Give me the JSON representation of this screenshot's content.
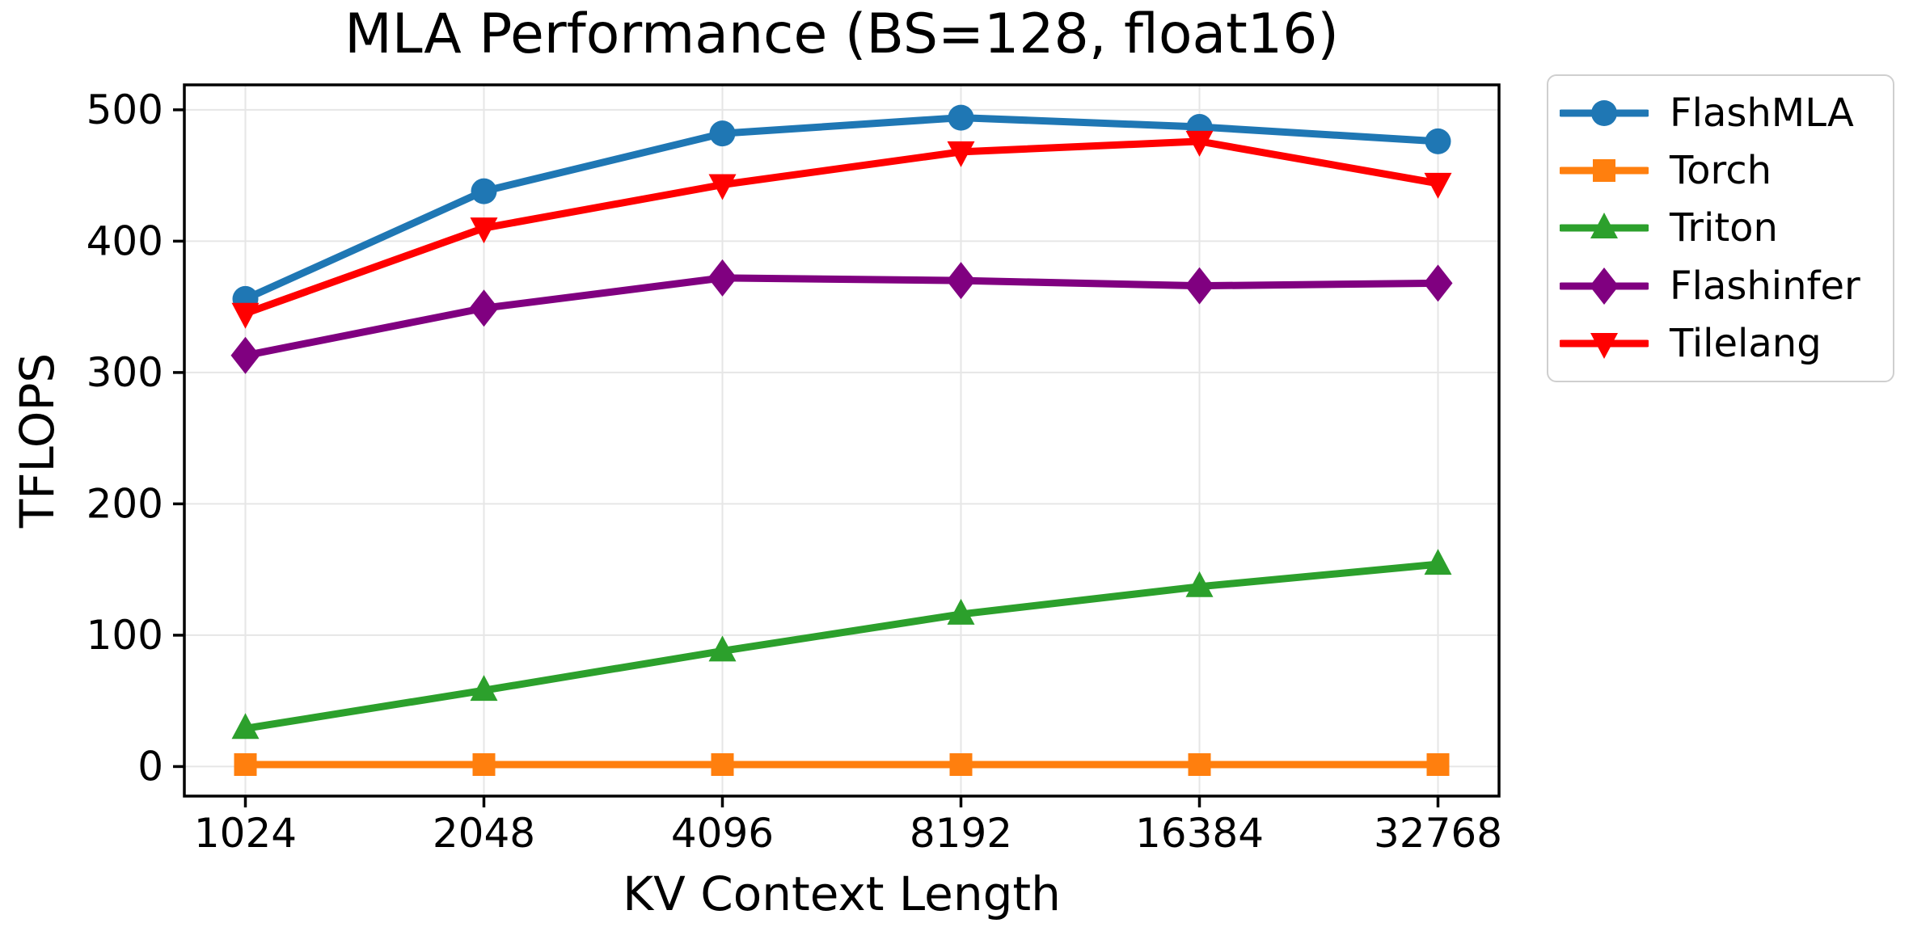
{
  "chart_data": {
    "type": "line",
    "title": "MLA Performance (BS=128, float16)",
    "xlabel": "KV Context Length",
    "ylabel": "TFLOPS",
    "categories": [
      "1024",
      "2048",
      "4096",
      "8192",
      "16384",
      "32768"
    ],
    "x_scale": "log2-categorical",
    "yticks": [
      0,
      100,
      200,
      300,
      400,
      500
    ],
    "ylim": [
      -22.5,
      519
    ],
    "grid": true,
    "legend": {
      "position": "outside-right-top"
    },
    "series": [
      {
        "name": "FlashMLA",
        "color": "#1f77b4",
        "marker": "circle",
        "values": [
          356,
          438,
          482,
          494,
          487,
          476
        ]
      },
      {
        "name": "Torch",
        "color": "#ff7f0e",
        "marker": "square",
        "values": [
          1.5,
          1.5,
          1.5,
          1.5,
          1.5,
          1.5
        ]
      },
      {
        "name": "Triton",
        "color": "#2ca02c",
        "marker": "triangle-up",
        "values": [
          29,
          58,
          88,
          116,
          137,
          154
        ]
      },
      {
        "name": "Flashinfer",
        "color": "#800080",
        "marker": "diamond",
        "values": [
          313,
          349,
          372,
          370,
          366,
          368
        ]
      },
      {
        "name": "Tilelang",
        "color": "#ff0000",
        "marker": "triangle-down",
        "values": [
          345,
          410,
          443,
          468,
          476,
          444
        ]
      }
    ]
  }
}
